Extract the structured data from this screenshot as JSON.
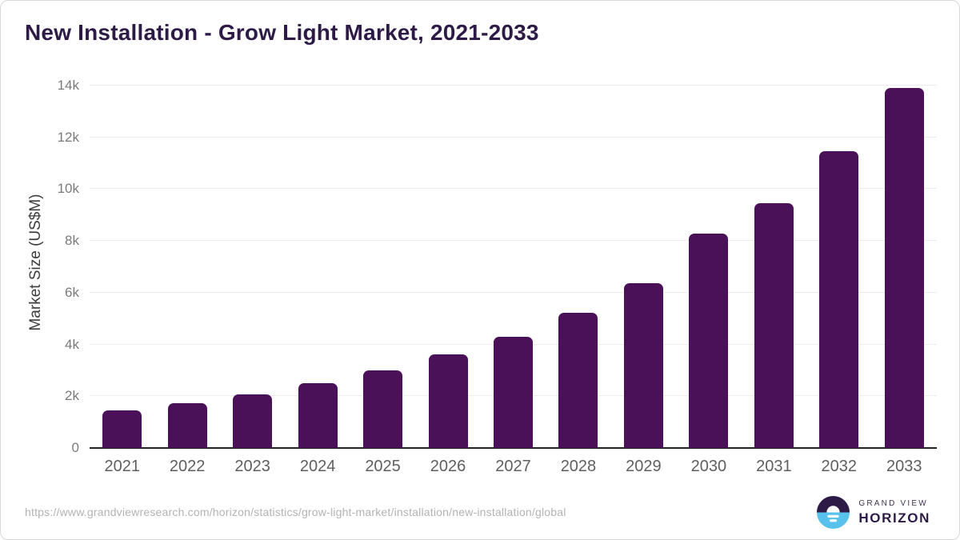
{
  "title": "New Installation - Grow Light Market, 2021-2033",
  "chart_data": {
    "type": "bar",
    "title": "New Installation - Grow Light Market, 2021-2033",
    "categories": [
      "2021",
      "2022",
      "2023",
      "2024",
      "2025",
      "2026",
      "2027",
      "2028",
      "2029",
      "2030",
      "2031",
      "2032",
      "2033"
    ],
    "values": [
      1450,
      1730,
      2060,
      2490,
      3010,
      3610,
      4310,
      5230,
      6360,
      8290,
      9450,
      11480,
      13900
    ],
    "xlabel": "",
    "ylabel": "Market Size (US$M)",
    "ylim": [
      0,
      14000
    ],
    "yticks": [
      {
        "value": 0,
        "label": "0"
      },
      {
        "value": 2000,
        "label": "2k"
      },
      {
        "value": 4000,
        "label": "4k"
      },
      {
        "value": 6000,
        "label": "6k"
      },
      {
        "value": 8000,
        "label": "8k"
      },
      {
        "value": 10000,
        "label": "10k"
      },
      {
        "value": 12000,
        "label": "12k"
      },
      {
        "value": 14000,
        "label": "14k"
      }
    ],
    "grid": true,
    "legend": false,
    "bar_color": "#4a1159"
  },
  "footer": {
    "source_url": "https://www.grandviewresearch.com/horizon/statistics/grow-light-market/installation/new-installation/global",
    "brand_line1": "GRAND VIEW",
    "brand_line2": "HORIZON"
  },
  "colors": {
    "title": "#2e1a47",
    "bar": "#4a1159",
    "gridline": "#ececec",
    "axis_baseline": "#222222",
    "y_tick": "#7a7a7a",
    "x_tick": "#5f5f5f",
    "source_url": "#b3b3b3",
    "logo_dark": "#2e1a47",
    "logo_blue": "#58c1ec"
  }
}
